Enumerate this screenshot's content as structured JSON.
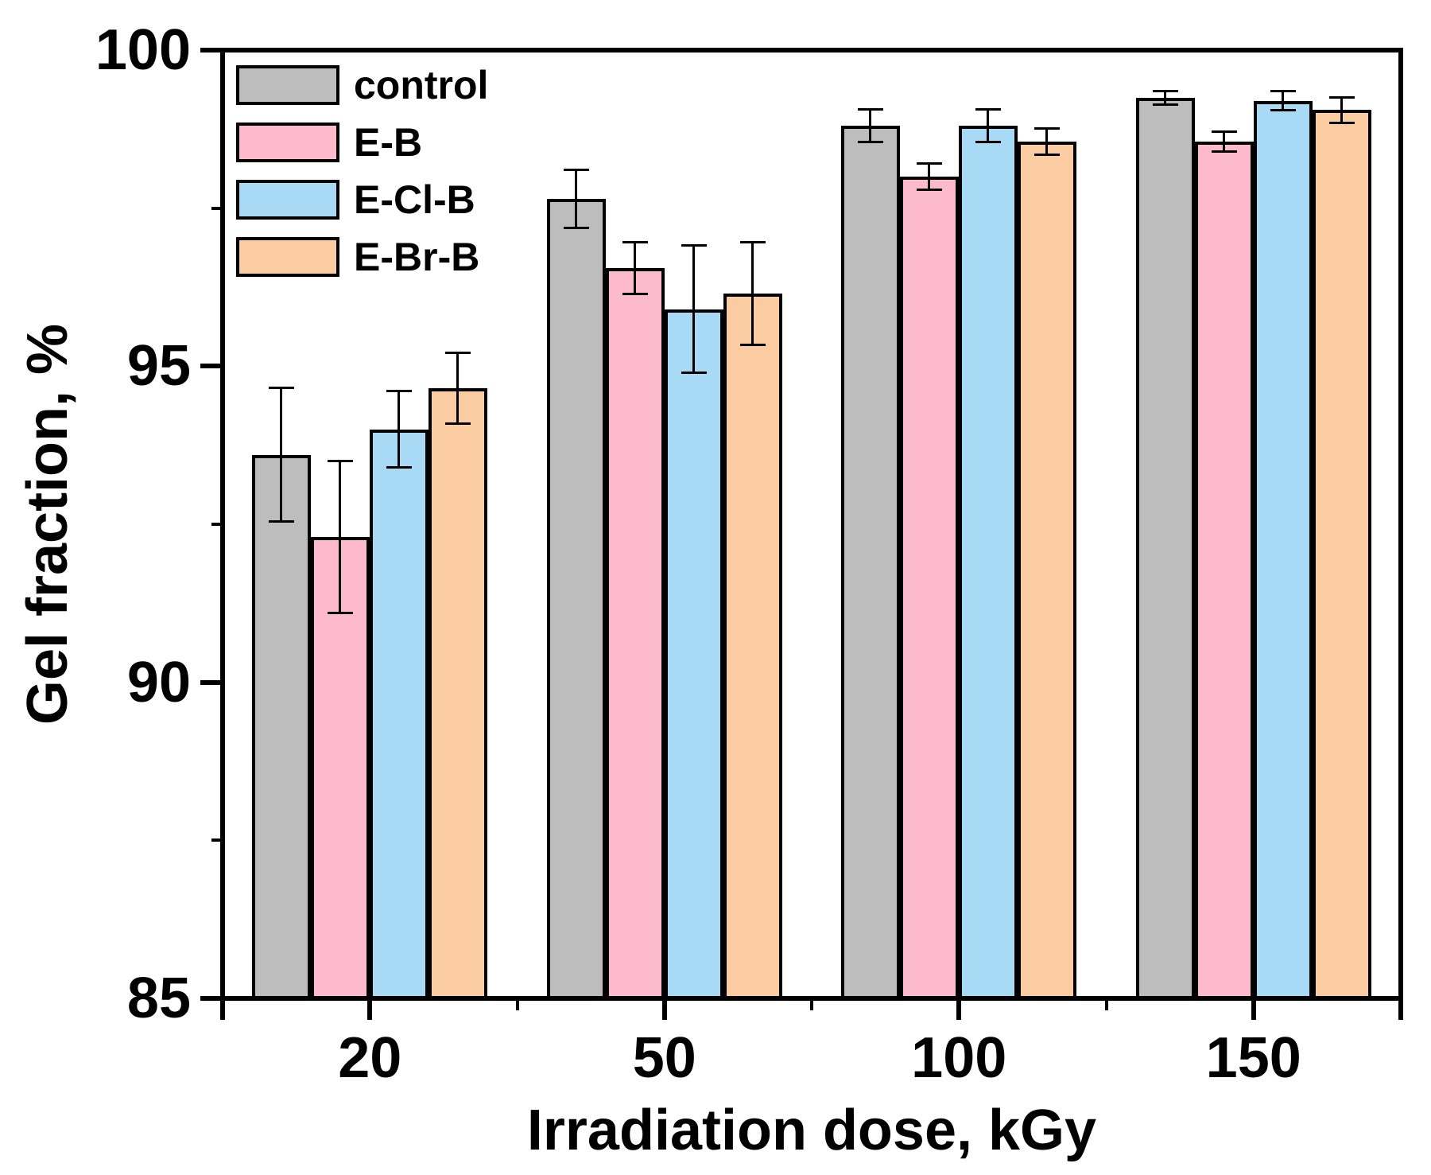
{
  "chart_data": {
    "type": "bar",
    "title": "",
    "xlabel": "Irradiation dose, kGy",
    "ylabel": "Gel fraction, %",
    "categories": [
      "20",
      "50",
      "100",
      "150"
    ],
    "series": [
      {
        "name": "control",
        "color": "#bdbdbd",
        "values": [
          93.6,
          97.65,
          98.8,
          99.25
        ],
        "errors": [
          1.05,
          0.45,
          0.25,
          0.1
        ]
      },
      {
        "name": "E-B",
        "color": "#fdbacf",
        "values": [
          92.3,
          96.55,
          98.0,
          98.55
        ],
        "errors": [
          1.2,
          0.4,
          0.2,
          0.15
        ]
      },
      {
        "name": "E-Cl-B",
        "color": "#a8daf5",
        "values": [
          94.0,
          95.9,
          98.8,
          99.2
        ],
        "errors": [
          0.6,
          1.0,
          0.25,
          0.15
        ]
      },
      {
        "name": "E-Br-B",
        "color": "#fbcca1",
        "values": [
          94.65,
          96.15,
          98.55,
          99.05
        ],
        "errors": [
          0.55,
          0.8,
          0.2,
          0.2
        ]
      }
    ],
    "ylim": [
      85,
      100
    ],
    "y_major_ticks": [
      85,
      90,
      95,
      100
    ],
    "y_minor_ticks": [
      87.5,
      92.5,
      97.5
    ],
    "x_tick_labels": [
      "20",
      "50",
      "100",
      "150"
    ],
    "grid": "off",
    "legend_position": "top-left",
    "bar_edge_color": "#000000",
    "error_bar_color": "#000000",
    "axis_color": "#000000",
    "background_color": "#ffffff"
  }
}
